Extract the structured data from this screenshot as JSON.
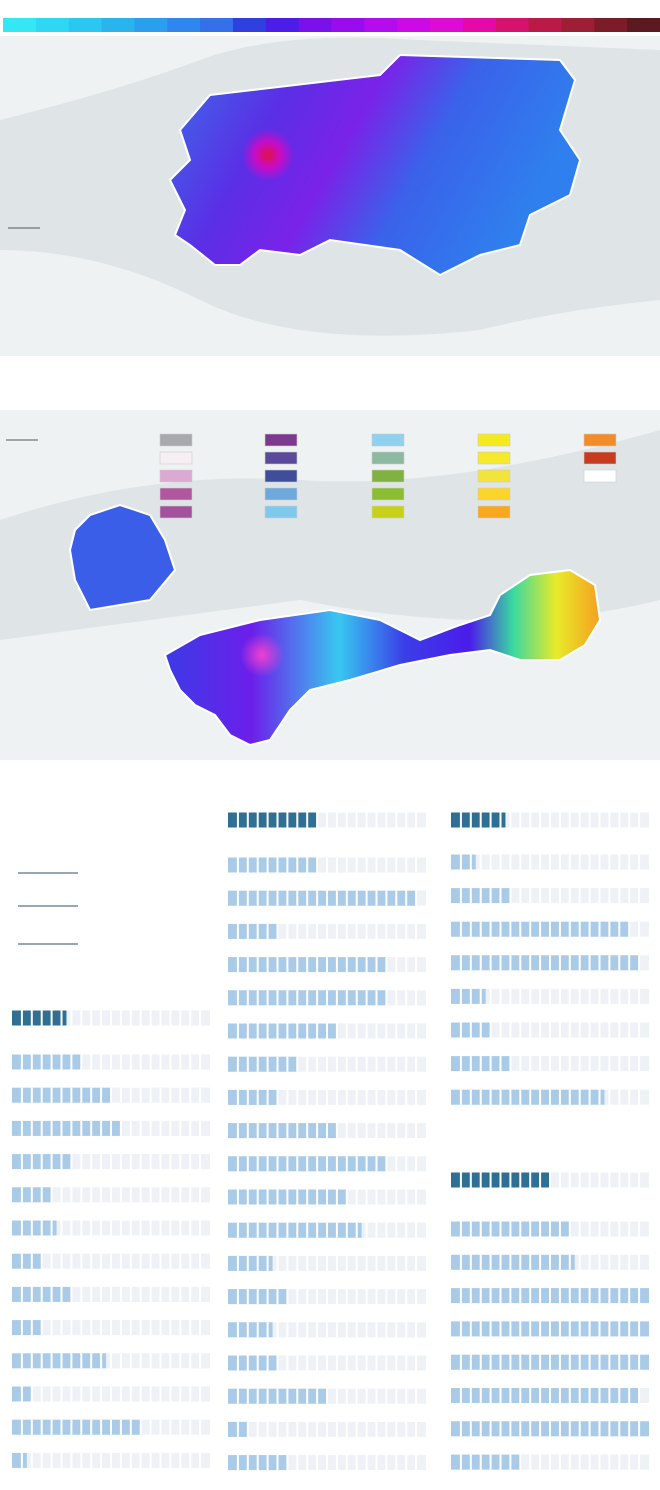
{
  "scale_colors": [
    "#33e8f2",
    "#2fd8f2",
    "#2bc7f0",
    "#2ab4ee",
    "#2a9ff0",
    "#2f86ee",
    "#3370ea",
    "#2f3fe0",
    "#4b1cea",
    "#7a10ee",
    "#9a0cf0",
    "#b30cf0",
    "#cc0ae6",
    "#e00ad6",
    "#e50aa8",
    "#d8106e",
    "#bb1a48",
    "#9e1e34",
    "#7c1c28",
    "#5a1a20"
  ],
  "legend_colors": [
    [
      "#a7a9ac",
      "#f5eef2",
      "#dca9d2",
      "#b0579e",
      "#a3519c"
    ],
    [
      "#7b3a8e",
      "#5a4a9c",
      "#3f4d9a",
      "#6fa8dc",
      "#7ec9ec"
    ],
    [
      "#8fd1ef",
      "#8db9a0",
      "#7fb241",
      "#8bbd31",
      "#c6d117"
    ],
    [
      "#f5ea1f",
      "#f6e82a",
      "#f2e43a",
      "#fbd52b",
      "#f7a81e"
    ],
    [
      "#f28c28",
      "#c73b1e",
      "#ffffff"
    ]
  ],
  "chart_data": [
    {
      "type": "bar",
      "xlim": [
        0,
        20
      ],
      "series": [
        {
          "color": "#2f6f93",
          "values": [
            5.5
          ]
        },
        {
          "color": "#a9cbe8",
          "values": [
            7,
            10,
            11,
            6,
            4,
            4.5,
            3,
            6,
            3,
            9.5,
            2,
            13,
            1.5
          ]
        }
      ]
    },
    {
      "type": "bar",
      "xlim": [
        0,
        20
      ],
      "series": [
        {
          "color": "#2f6f93",
          "values": [
            9
          ]
        },
        {
          "color": "#a9cbe8",
          "values": [
            9,
            19,
            5,
            16,
            16,
            11,
            7,
            5,
            11,
            16,
            12,
            13.5,
            4.5,
            6,
            4.5,
            5,
            10,
            2,
            6
          ]
        }
      ]
    },
    {
      "type": "bar",
      "xlim": [
        0,
        20
      ],
      "series": [
        {
          "color": "#2f6f93",
          "values": [
            5.5
          ]
        },
        {
          "color": "#a9cbe8",
          "values": [
            2.5,
            6,
            18,
            19,
            3.5,
            4,
            6,
            15.5
          ]
        }
      ]
    },
    {
      "type": "bar",
      "xlim": [
        0,
        20
      ],
      "series": [
        {
          "color": "#2f6f93",
          "values": [
            10
          ]
        },
        {
          "color": "#a9cbe8",
          "values": [
            12,
            12.5,
            20,
            20,
            20,
            19,
            20,
            7
          ]
        }
      ]
    }
  ]
}
